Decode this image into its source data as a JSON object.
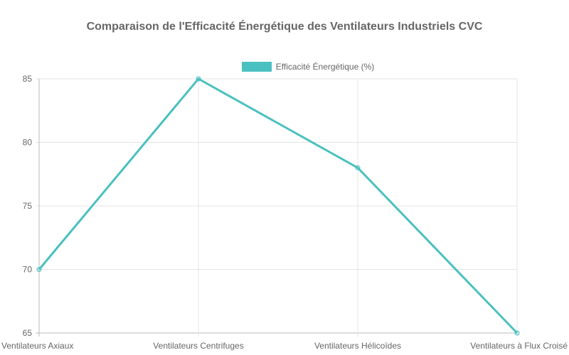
{
  "chart_data": {
    "type": "line",
    "title": "Comparaison de l'Efficacité Énergétique des Ventilateurs Industriels CVC",
    "categories": [
      "Ventilateurs Axiaux",
      "Ventilateurs Centrifuges",
      "Ventilateurs Hélicoïdes",
      "Ventilateurs à Flux Croisé"
    ],
    "series": [
      {
        "name": "Efficacité Énergétique (%)",
        "values": [
          70,
          85,
          78,
          65
        ],
        "color": "#4bc0c0"
      }
    ],
    "xlabel": "",
    "ylabel": "",
    "ylim": [
      65,
      85
    ],
    "yticks": [
      "85",
      "80",
      "75",
      "70",
      "65"
    ],
    "grid": true,
    "legend_position": "top"
  }
}
